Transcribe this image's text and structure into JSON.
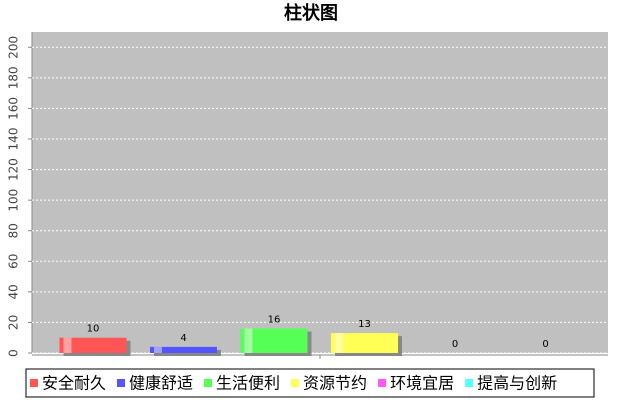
{
  "chart_data": {
    "type": "bar",
    "title": "柱状图",
    "categories": [
      null
    ],
    "series": [
      {
        "name": "安全耐久",
        "color": "#ff5555",
        "values": [
          10
        ]
      },
      {
        "name": "健康舒适",
        "color": "#5555ff",
        "values": [
          4
        ]
      },
      {
        "name": "生活便利",
        "color": "#55ff55",
        "values": [
          16
        ]
      },
      {
        "name": "资源节约",
        "color": "#ffff55",
        "values": [
          13
        ]
      },
      {
        "name": "环境宜居",
        "color": "#ff55ff",
        "values": [
          0
        ]
      },
      {
        "name": "提高与创新",
        "color": "#55ffff",
        "values": [
          0
        ]
      }
    ],
    "ylim": [
      0,
      210
    ],
    "yticks": [
      0,
      20,
      40,
      60,
      80,
      100,
      120,
      140,
      160,
      180,
      200
    ],
    "grid": true,
    "legend": "bottom"
  }
}
